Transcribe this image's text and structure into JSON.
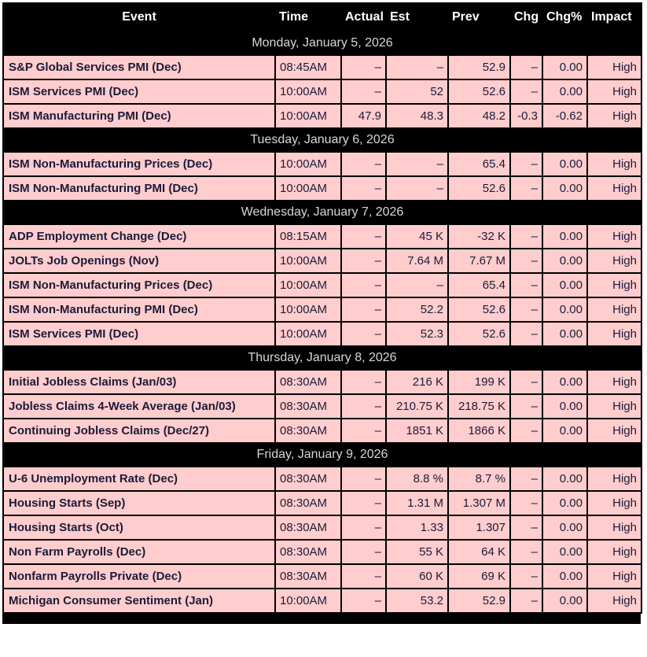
{
  "header": {
    "columns": [
      {
        "key": "event",
        "label": "Event"
      },
      {
        "key": "time",
        "label": "Time"
      },
      {
        "key": "actual",
        "label": "Actual"
      },
      {
        "key": "est",
        "label": "Est"
      },
      {
        "key": "prev",
        "label": "Prev"
      },
      {
        "key": "chg",
        "label": "Chg"
      },
      {
        "key": "chgpct",
        "label": "Chg%"
      },
      {
        "key": "impact",
        "label": "Impact"
      }
    ]
  },
  "sections": [
    {
      "date": "Monday, January 5, 2026",
      "rows": [
        {
          "event": "S&P Global Services PMI (Dec)",
          "time": "08:45AM",
          "actual": "–",
          "est": "–",
          "prev": "52.9",
          "chg": "–",
          "chgpct": "0.00",
          "impact": "High"
        },
        {
          "event": "ISM Services PMI (Dec)",
          "time": "10:00AM",
          "actual": "–",
          "est": "52",
          "prev": "52.6",
          "chg": "–",
          "chgpct": "0.00",
          "impact": "High"
        },
        {
          "event": "ISM Manufacturing PMI (Dec)",
          "time": "10:00AM",
          "actual": "47.9",
          "est": "48.3",
          "prev": "48.2",
          "chg": "-0.3",
          "chgpct": "-0.62",
          "impact": "High"
        }
      ]
    },
    {
      "date": "Tuesday, January 6, 2026",
      "rows": [
        {
          "event": "ISM Non-Manufacturing Prices (Dec)",
          "time": "10:00AM",
          "actual": "–",
          "est": "–",
          "prev": "65.4",
          "chg": "–",
          "chgpct": "0.00",
          "impact": "High"
        },
        {
          "event": "ISM Non-Manufacturing PMI (Dec)",
          "time": "10:00AM",
          "actual": "–",
          "est": "–",
          "prev": "52.6",
          "chg": "–",
          "chgpct": "0.00",
          "impact": "High"
        }
      ]
    },
    {
      "date": "Wednesday, January 7, 2026",
      "rows": [
        {
          "event": "ADP Employment Change (Dec)",
          "time": "08:15AM",
          "actual": "–",
          "est": "45 K",
          "prev": "-32 K",
          "chg": "–",
          "chgpct": "0.00",
          "impact": "High"
        },
        {
          "event": "JOLTs Job Openings (Nov)",
          "time": "10:00AM",
          "actual": "–",
          "est": "7.64 M",
          "prev": "7.67 M",
          "chg": "–",
          "chgpct": "0.00",
          "impact": "High"
        },
        {
          "event": "ISM Non-Manufacturing Prices (Dec)",
          "time": "10:00AM",
          "actual": "–",
          "est": "–",
          "prev": "65.4",
          "chg": "–",
          "chgpct": "0.00",
          "impact": "High"
        },
        {
          "event": "ISM Non-Manufacturing PMI (Dec)",
          "time": "10:00AM",
          "actual": "–",
          "est": "52.2",
          "prev": "52.6",
          "chg": "–",
          "chgpct": "0.00",
          "impact": "High"
        },
        {
          "event": "ISM Services PMI (Dec)",
          "time": "10:00AM",
          "actual": "–",
          "est": "52.3",
          "prev": "52.6",
          "chg": "–",
          "chgpct": "0.00",
          "impact": "High"
        }
      ]
    },
    {
      "date": "Thursday, January 8, 2026",
      "rows": [
        {
          "event": "Initial Jobless Claims (Jan/03)",
          "time": "08:30AM",
          "actual": "–",
          "est": "216 K",
          "prev": "199 K",
          "chg": "–",
          "chgpct": "0.00",
          "impact": "High"
        },
        {
          "event": "Jobless Claims 4-Week Average (Jan/03)",
          "time": "08:30AM",
          "actual": "–",
          "est": "210.75 K",
          "prev": "218.75 K",
          "chg": "–",
          "chgpct": "0.00",
          "impact": "High"
        },
        {
          "event": "Continuing Jobless Claims (Dec/27)",
          "time": "08:30AM",
          "actual": "–",
          "est": "1851 K",
          "prev": "1866 K",
          "chg": "–",
          "chgpct": "0.00",
          "impact": "High"
        }
      ]
    },
    {
      "date": "Friday, January 9, 2026",
      "rows": [
        {
          "event": "U-6 Unemployment Rate (Dec)",
          "time": "08:30AM",
          "actual": "–",
          "est": "8.8 %",
          "prev": "8.7 %",
          "chg": "–",
          "chgpct": "0.00",
          "impact": "High"
        },
        {
          "event": "Housing Starts (Sep)",
          "time": "08:30AM",
          "actual": "–",
          "est": "1.31 M",
          "prev": "1.307 M",
          "chg": "–",
          "chgpct": "0.00",
          "impact": "High"
        },
        {
          "event": "Housing Starts (Oct)",
          "time": "08:30AM",
          "actual": "–",
          "est": "1.33",
          "prev": "1.307",
          "chg": "–",
          "chgpct": "0.00",
          "impact": "High"
        },
        {
          "event": "Non Farm Payrolls (Dec)",
          "time": "08:30AM",
          "actual": "–",
          "est": "55 K",
          "prev": "64 K",
          "chg": "–",
          "chgpct": "0.00",
          "impact": "High"
        },
        {
          "event": "Nonfarm Payrolls Private (Dec)",
          "time": "08:30AM",
          "actual": "–",
          "est": "60 K",
          "prev": "69 K",
          "chg": "–",
          "chgpct": "0.00",
          "impact": "High"
        },
        {
          "event": "Michigan Consumer Sentiment (Jan)",
          "time": "10:00AM",
          "actual": "–",
          "est": "53.2",
          "prev": "52.9",
          "chg": "–",
          "chgpct": "0.00",
          "impact": "High"
        }
      ]
    }
  ],
  "colors": {
    "header_bg": "#000000",
    "header_text": "#ffffff",
    "date_row_bg": "#000000",
    "date_row_text": "#d6d6d6",
    "row_bg": "#ffcdcd",
    "row_text": "#1b1b3a",
    "border": "#000000"
  }
}
